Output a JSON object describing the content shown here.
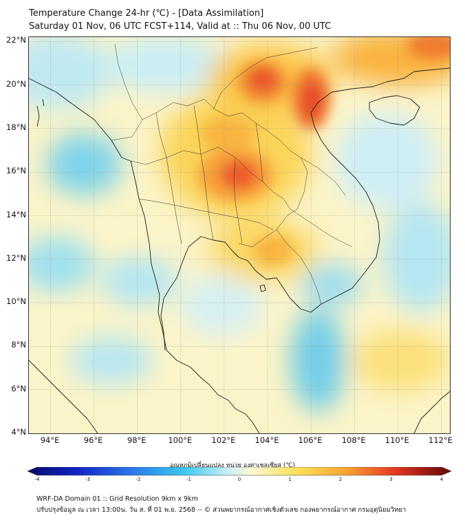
{
  "header": {
    "title_line1": "Temperature Change 24-hr (℃) - [Data Assimilation]",
    "title_line2": "Saturday 01 Nov, 06 UTC FCST+114, Valid at :: Thu 06 Nov, 00 UTC"
  },
  "map": {
    "lat_labels": [
      {
        "lat": 22,
        "text": "22°N"
      },
      {
        "lat": 20,
        "text": "20°N"
      },
      {
        "lat": 18,
        "text": "18°N"
      },
      {
        "lat": 16,
        "text": "16°N"
      },
      {
        "lat": 14,
        "text": "14°N"
      },
      {
        "lat": 12,
        "text": "12°N"
      },
      {
        "lat": 10,
        "text": "10°N"
      },
      {
        "lat": 8,
        "text": "8°N"
      },
      {
        "lat": 6,
        "text": "6°N"
      },
      {
        "lat": 4,
        "text": "4°N"
      }
    ],
    "lon_labels": [
      {
        "lon": 94,
        "text": "94°E"
      },
      {
        "lon": 96,
        "text": "96°E"
      },
      {
        "lon": 98,
        "text": "98°E"
      },
      {
        "lon": 100,
        "text": "100°E"
      },
      {
        "lon": 102,
        "text": "102°E"
      },
      {
        "lon": 104,
        "text": "104°E"
      },
      {
        "lon": 106,
        "text": "106°E"
      },
      {
        "lon": 108,
        "text": "108°E"
      },
      {
        "lon": 110,
        "text": "110°E"
      },
      {
        "lon": 112,
        "text": "112°E"
      }
    ],
    "extent": {
      "lon_min": 93,
      "lon_max": 112.4,
      "lat_min": 4,
      "lat_max": 22.2
    },
    "warm_spots": [
      {
        "lon": 102.7,
        "lat": 15.9,
        "delta": 2.8
      },
      {
        "lon": 103.9,
        "lat": 20.3,
        "delta": 2.6
      },
      {
        "lon": 106.0,
        "lat": 19.4,
        "delta": 2.7
      },
      {
        "lon": 110.6,
        "lat": 21.9,
        "delta": 2.2
      },
      {
        "lon": 102.6,
        "lat": 17.6,
        "delta": 1.6
      },
      {
        "lon": 104.0,
        "lat": 13.4,
        "delta": 1.3
      }
    ],
    "cool_spots": [
      {
        "lon": 95.5,
        "lat": 15.8,
        "delta": -1.4
      },
      {
        "lon": 106.3,
        "lat": 6.0,
        "delta": -1.2
      },
      {
        "lon": 96.2,
        "lat": 11.5,
        "delta": -1.0
      },
      {
        "lon": 106.3,
        "lat": 11.2,
        "delta": -1.0
      },
      {
        "lon": 109.5,
        "lat": 17.0,
        "delta": -0.9
      },
      {
        "lon": 111.5,
        "lat": 12.0,
        "delta": -0.9
      }
    ]
  },
  "colorbar": {
    "title": "อุณหภูมิเปลี่ยนแปลง หน่วย องศาเซลเซียส (℃)",
    "min": -4,
    "max": 4,
    "ticks": [
      "-4",
      "-3",
      "-2",
      "-1",
      "0",
      "1",
      "2",
      "3",
      "4"
    ]
  },
  "footer": {
    "line1": "WRF-DA Domain 01 :: Grid Resolution 9km x 9km",
    "line2": "ปรับปรุงข้อมูล ณ เวลา 13:00น. วัน ส. ที่ 01 พ.ย. 2568 -- © ส่วนพยากรณ์อากาศเชิงตัวเลข กองพยากรณ์อากาศ กรมอุตุนิยมวิทยา"
  }
}
